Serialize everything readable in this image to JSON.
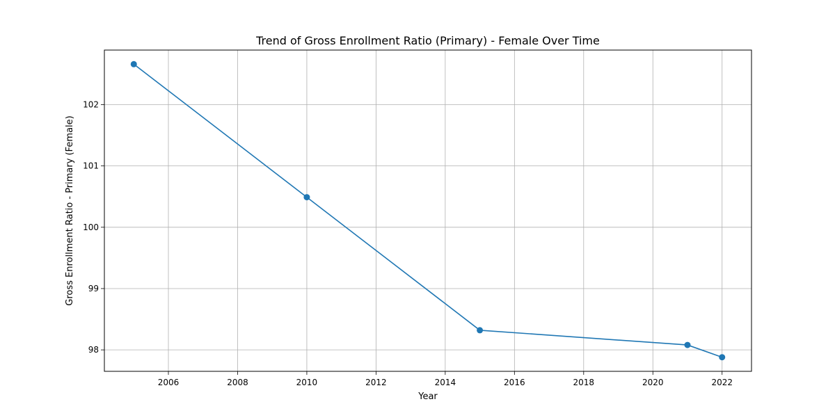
{
  "chart_data": {
    "type": "line",
    "title": "Trend of Gross Enrollment Ratio (Primary) - Female Over Time",
    "xlabel": "Year",
    "ylabel": "Gross Enrollment Ratio - Primary (Female)",
    "x": [
      2005,
      2010,
      2015,
      2021,
      2022
    ],
    "series": [
      {
        "values": [
          102.66,
          100.49,
          98.32,
          98.08,
          97.88
        ],
        "color": "#1f77b4",
        "marker": "circle"
      }
    ],
    "xlim": [
      2004.15,
      2022.85
    ],
    "ylim": [
      97.65,
      102.89
    ],
    "x_ticks": [
      2006,
      2008,
      2010,
      2012,
      2014,
      2016,
      2018,
      2020,
      2022
    ],
    "y_ticks": [
      98,
      99,
      100,
      101,
      102
    ],
    "grid": true,
    "legend": "none"
  }
}
